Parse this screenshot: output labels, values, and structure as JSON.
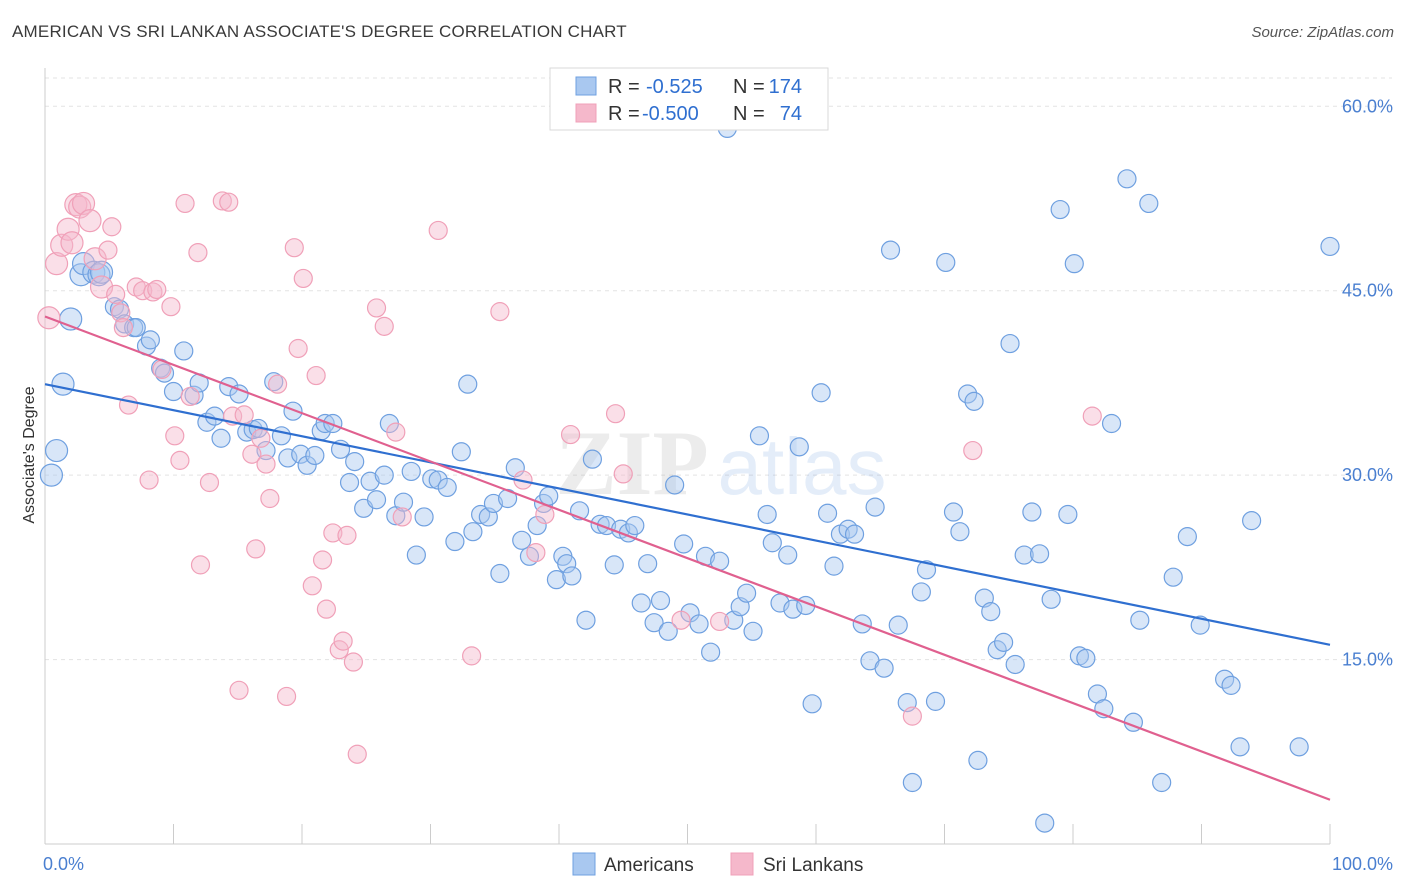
{
  "header": {
    "title": "AMERICAN VS SRI LANKAN ASSOCIATE'S DEGREE CORRELATION CHART",
    "source": "Source: ZipAtlas.com"
  },
  "watermark": {
    "zip": "ZIP",
    "atlas": "atlas"
  },
  "legend": {
    "rows": [
      {
        "r_label": "R =",
        "r_value": "-0.525",
        "n_label": "N =",
        "n_value": "174",
        "color": "#a9c8f0"
      },
      {
        "r_label": "R =",
        "r_value": "-0.500",
        "n_label": "N =",
        "n_value": "74",
        "color": "#f5b8cb"
      }
    ]
  },
  "chart_data": {
    "type": "scatter",
    "title": "AMERICAN VS SRI LANKAN ASSOCIATE'S DEGREE CORRELATION CHART",
    "xlabel": "",
    "ylabel": "Associate's Degree",
    "x_tick_labels": [
      "0.0%",
      "100.0%"
    ],
    "y_tick_labels": [
      "15.0%",
      "30.0%",
      "45.0%",
      "60.0%"
    ],
    "y_ticks": [
      15,
      30,
      45,
      60
    ],
    "xlim": [
      0,
      100
    ],
    "ylim": [
      0,
      62.3
    ],
    "grid": true,
    "legend_position": "top-center",
    "series": [
      {
        "name": "Americans",
        "color": "#6fa0e0",
        "trend": {
          "x": [
            0,
            100
          ],
          "y": [
            37.4,
            16.2
          ],
          "color": "#2f6fd0"
        },
        "points": [
          [
            0.5,
            30
          ],
          [
            0.9,
            32
          ],
          [
            1.4,
            37.4
          ],
          [
            2.0,
            42.7
          ],
          [
            2.8,
            46.3
          ],
          [
            3.0,
            47.2
          ],
          [
            3.8,
            46.5
          ],
          [
            4.2,
            46.3
          ],
          [
            4.4,
            46.5
          ],
          [
            5.4,
            43.7
          ],
          [
            5.8,
            43.5
          ],
          [
            6.2,
            42.3
          ],
          [
            6.9,
            42.0
          ],
          [
            7.1,
            42.0
          ],
          [
            7.9,
            40.5
          ],
          [
            8.2,
            41
          ],
          [
            9.0,
            38.7
          ],
          [
            9.3,
            38.3
          ],
          [
            10.0,
            36.8
          ],
          [
            10.8,
            40.1
          ],
          [
            11.6,
            36.5
          ],
          [
            12.0,
            37.5
          ],
          [
            12.6,
            34.3
          ],
          [
            13.2,
            34.8
          ],
          [
            13.7,
            33
          ],
          [
            14.3,
            37.2
          ],
          [
            15.1,
            36.6
          ],
          [
            15.7,
            33.5
          ],
          [
            16.2,
            33.7
          ],
          [
            16.6,
            33.8
          ],
          [
            17.2,
            32
          ],
          [
            17.8,
            37.6
          ],
          [
            18.4,
            33.2
          ],
          [
            18.9,
            31.4
          ],
          [
            19.3,
            35.2
          ],
          [
            19.9,
            31.7
          ],
          [
            20.4,
            30.8
          ],
          [
            21.0,
            31.6
          ],
          [
            21.5,
            33.6
          ],
          [
            21.8,
            34.2
          ],
          [
            22.4,
            34.2
          ],
          [
            23.0,
            32.1
          ],
          [
            23.7,
            29.4
          ],
          [
            24.1,
            31.1
          ],
          [
            24.8,
            27.3
          ],
          [
            25.3,
            29.5
          ],
          [
            25.8,
            28
          ],
          [
            26.4,
            30
          ],
          [
            26.8,
            34.2
          ],
          [
            27.3,
            26.7
          ],
          [
            27.9,
            27.8
          ],
          [
            28.5,
            30.3
          ],
          [
            28.9,
            23.5
          ],
          [
            29.5,
            26.6
          ],
          [
            30.1,
            29.7
          ],
          [
            30.6,
            29.6
          ],
          [
            31.3,
            29.0
          ],
          [
            31.9,
            24.6
          ],
          [
            32.4,
            31.9
          ],
          [
            32.9,
            37.4
          ],
          [
            33.3,
            25.4
          ],
          [
            33.9,
            26.8
          ],
          [
            34.5,
            26.6
          ],
          [
            34.9,
            27.7
          ],
          [
            35.4,
            22
          ],
          [
            36.0,
            28.1
          ],
          [
            36.6,
            30.6
          ],
          [
            37.1,
            24.7
          ],
          [
            37.7,
            23.4
          ],
          [
            38.3,
            25.9
          ],
          [
            38.8,
            27.7
          ],
          [
            39.2,
            28.3
          ],
          [
            39.8,
            21.5
          ],
          [
            40.3,
            23.4
          ],
          [
            40.6,
            22.8
          ],
          [
            41.0,
            21.8
          ],
          [
            41.6,
            27.1
          ],
          [
            42.1,
            18.2
          ],
          [
            42.6,
            31.3
          ],
          [
            43.2,
            26.0
          ],
          [
            43.7,
            25.9
          ],
          [
            44.3,
            22.7
          ],
          [
            44.8,
            25.6
          ],
          [
            45.4,
            25.3
          ],
          [
            45.9,
            25.9
          ],
          [
            46.4,
            19.6
          ],
          [
            46.9,
            22.8
          ],
          [
            47.4,
            18
          ],
          [
            47.9,
            19.8
          ],
          [
            48.5,
            17.3
          ],
          [
            49.0,
            29.2
          ],
          [
            49.7,
            24.4
          ],
          [
            50.2,
            18.8
          ],
          [
            50.9,
            17.9
          ],
          [
            51.4,
            23.4
          ],
          [
            51.8,
            15.6
          ],
          [
            52.5,
            23
          ],
          [
            53.1,
            58.2
          ],
          [
            53.6,
            18.2
          ],
          [
            54.1,
            19.3
          ],
          [
            54.6,
            20.4
          ],
          [
            55.1,
            17.3
          ],
          [
            55.6,
            33.2
          ],
          [
            56.2,
            26.8
          ],
          [
            56.6,
            24.5
          ],
          [
            57.2,
            19.6
          ],
          [
            57.8,
            23.5
          ],
          [
            58.2,
            19.1
          ],
          [
            58.7,
            32.3
          ],
          [
            59.2,
            19.4
          ],
          [
            59.7,
            11.4
          ],
          [
            60.4,
            36.7
          ],
          [
            60.9,
            26.9
          ],
          [
            61.4,
            22.6
          ],
          [
            61.9,
            25.2
          ],
          [
            62.5,
            25.6
          ],
          [
            63.0,
            25.2
          ],
          [
            63.6,
            17.9
          ],
          [
            64.2,
            14.9
          ],
          [
            64.6,
            27.4
          ],
          [
            65.3,
            14.3
          ],
          [
            65.8,
            48.3
          ],
          [
            66.4,
            17.8
          ],
          [
            67.1,
            11.5
          ],
          [
            67.5,
            5
          ],
          [
            68.2,
            20.5
          ],
          [
            68.6,
            22.3
          ],
          [
            69.3,
            11.6
          ],
          [
            70.1,
            47.3
          ],
          [
            70.7,
            27.0
          ],
          [
            71.2,
            25.4
          ],
          [
            71.8,
            36.6
          ],
          [
            72.3,
            36
          ],
          [
            72.6,
            6.8
          ],
          [
            73.1,
            20
          ],
          [
            73.6,
            18.9
          ],
          [
            74.1,
            15.8
          ],
          [
            74.6,
            16.4
          ],
          [
            75.1,
            40.7
          ],
          [
            75.5,
            14.6
          ],
          [
            76.2,
            23.5
          ],
          [
            76.8,
            27.0
          ],
          [
            77.4,
            23.6
          ],
          [
            77.8,
            1.7
          ],
          [
            78.3,
            19.9
          ],
          [
            79.0,
            51.6
          ],
          [
            79.6,
            26.8
          ],
          [
            80.1,
            47.2
          ],
          [
            80.5,
            15.3
          ],
          [
            81.0,
            15.1
          ],
          [
            81.9,
            12.2
          ],
          [
            82.4,
            11
          ],
          [
            83.0,
            34.2
          ],
          [
            84.2,
            54.1
          ],
          [
            84.7,
            9.9
          ],
          [
            85.2,
            18.2
          ],
          [
            85.9,
            52.1
          ],
          [
            86.9,
            5
          ],
          [
            87.8,
            21.7
          ],
          [
            88.9,
            25
          ],
          [
            89.9,
            17.8
          ],
          [
            91.8,
            13.4
          ],
          [
            92.3,
            12.9
          ],
          [
            93.0,
            7.9
          ],
          [
            93.9,
            26.3
          ],
          [
            97.6,
            7.9
          ],
          [
            100.0,
            48.6
          ]
        ]
      },
      {
        "name": "Sri Lankans",
        "color": "#f0a0b8",
        "trend": {
          "x": [
            0,
            100
          ],
          "y": [
            42.9,
            3.6
          ],
          "color": "#e0608f"
        },
        "points": [
          [
            0.3,
            42.8
          ],
          [
            0.9,
            47.2
          ],
          [
            1.3,
            48.7
          ],
          [
            1.8,
            50
          ],
          [
            2.1,
            48.9
          ],
          [
            2.4,
            52
          ],
          [
            2.7,
            51.8
          ],
          [
            3.0,
            52.1
          ],
          [
            3.5,
            50.7
          ],
          [
            3.9,
            47.6
          ],
          [
            4.4,
            45.3
          ],
          [
            4.9,
            48.3
          ],
          [
            5.2,
            50.2
          ],
          [
            5.5,
            44.7
          ],
          [
            5.9,
            43.2
          ],
          [
            6.1,
            42
          ],
          [
            6.5,
            35.7
          ],
          [
            7.1,
            45.3
          ],
          [
            7.6,
            45
          ],
          [
            8.1,
            29.6
          ],
          [
            8.4,
            44.9
          ],
          [
            8.7,
            45.1
          ],
          [
            9.1,
            38.6
          ],
          [
            9.8,
            43.7
          ],
          [
            10.1,
            33.2
          ],
          [
            10.5,
            31.2
          ],
          [
            10.9,
            52.1
          ],
          [
            11.3,
            36.4
          ],
          [
            11.9,
            48.1
          ],
          [
            12.1,
            22.7
          ],
          [
            12.8,
            29.4
          ],
          [
            13.8,
            52.3
          ],
          [
            14.3,
            52.2
          ],
          [
            14.6,
            34.8
          ],
          [
            15.1,
            12.5
          ],
          [
            15.5,
            34.9
          ],
          [
            16.1,
            31.7
          ],
          [
            16.4,
            24
          ],
          [
            16.8,
            33
          ],
          [
            17.2,
            30.9
          ],
          [
            17.5,
            28.1
          ],
          [
            18.1,
            37.4
          ],
          [
            18.8,
            12
          ],
          [
            19.4,
            48.5
          ],
          [
            19.7,
            40.3
          ],
          [
            20.1,
            46
          ],
          [
            20.8,
            21
          ],
          [
            21.1,
            38.1
          ],
          [
            21.6,
            23.1
          ],
          [
            21.9,
            19.1
          ],
          [
            22.4,
            25.3
          ],
          [
            22.9,
            15.8
          ],
          [
            23.2,
            16.5
          ],
          [
            23.5,
            25.1
          ],
          [
            24.0,
            14.8
          ],
          [
            24.3,
            7.3
          ],
          [
            25.8,
            43.6
          ],
          [
            26.4,
            42.1
          ],
          [
            27.3,
            33.5
          ],
          [
            27.8,
            26.6
          ],
          [
            30.6,
            49.9
          ],
          [
            33.2,
            15.3
          ],
          [
            35.4,
            43.3
          ],
          [
            37.2,
            29.6
          ],
          [
            38.2,
            23.7
          ],
          [
            38.9,
            26.8
          ],
          [
            40.9,
            33.3
          ],
          [
            44.4,
            35
          ],
          [
            45.0,
            30.1
          ],
          [
            49.5,
            18.2
          ],
          [
            52.5,
            18.1
          ],
          [
            67.5,
            10.4
          ],
          [
            72.2,
            32
          ],
          [
            81.5,
            34.8
          ]
        ]
      }
    ]
  },
  "bottom_legend": [
    {
      "label": "Americans",
      "color": "#a9c8f0"
    },
    {
      "label": "Sri Lankans",
      "color": "#f5b8cb"
    }
  ]
}
